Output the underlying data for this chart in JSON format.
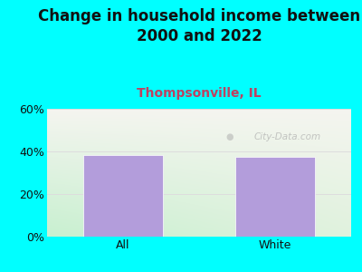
{
  "title": "Change in household income between\n2000 and 2022",
  "subtitle": "Thompsonville, IL",
  "categories": [
    "All",
    "White"
  ],
  "values": [
    38.5,
    37.5
  ],
  "bar_color": "#b39ddb",
  "bar_edgecolor": "#ffffff",
  "title_fontsize": 12,
  "subtitle_fontsize": 10,
  "subtitle_color": "#c04060",
  "title_color": "#111111",
  "tick_label_fontsize": 9,
  "ylim": [
    0,
    60
  ],
  "yticks": [
    0,
    20,
    40,
    60
  ],
  "ytick_labels": [
    "0%",
    "20%",
    "40%",
    "60%"
  ],
  "background_outer": "#00ffff",
  "bg_top_right": "#f5f5f0",
  "bg_bottom_left": "#c8f0d0",
  "watermark": "City-Data.com",
  "grid_color": "#dddddd"
}
